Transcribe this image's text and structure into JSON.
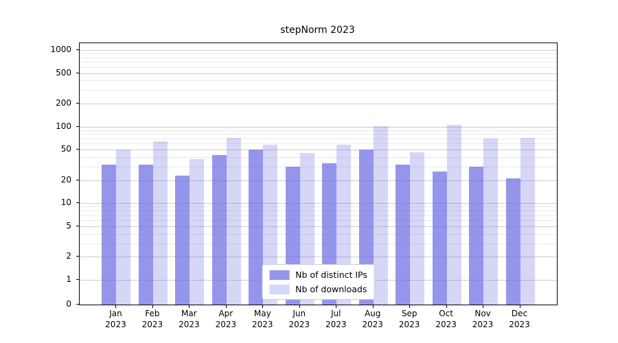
{
  "title": "stepNorm 2023",
  "chart_data": {
    "type": "bar",
    "title": "stepNorm 2023",
    "yscale": "symlog",
    "ylim": [
      0,
      1300
    ],
    "yticks": [
      0,
      1,
      2,
      5,
      10,
      20,
      50,
      100,
      200,
      500,
      1000
    ],
    "grid": true,
    "legend_position": "lower center",
    "categories": [
      "Jan\n2023",
      "Feb\n2023",
      "Mar\n2023",
      "Apr\n2023",
      "May\n2023",
      "Jun\n2023",
      "Jul\n2023",
      "Aug\n2023",
      "Sep\n2023",
      "Oct\n2023",
      "Nov\n2023",
      "Dec\n2023"
    ],
    "series": [
      {
        "name": "Nb of distinct IPs",
        "color": "rgba(108,108,228,0.72)",
        "values": [
          32,
          32,
          23,
          43,
          50,
          30,
          33,
          50,
          32,
          26,
          30,
          21
        ]
      },
      {
        "name": "Nb of downloads",
        "color": "rgba(108,108,228,0.28)",
        "values": [
          50,
          65,
          38,
          72,
          58,
          45,
          58,
          102,
          46,
          105,
          70,
          72
        ]
      }
    ]
  }
}
